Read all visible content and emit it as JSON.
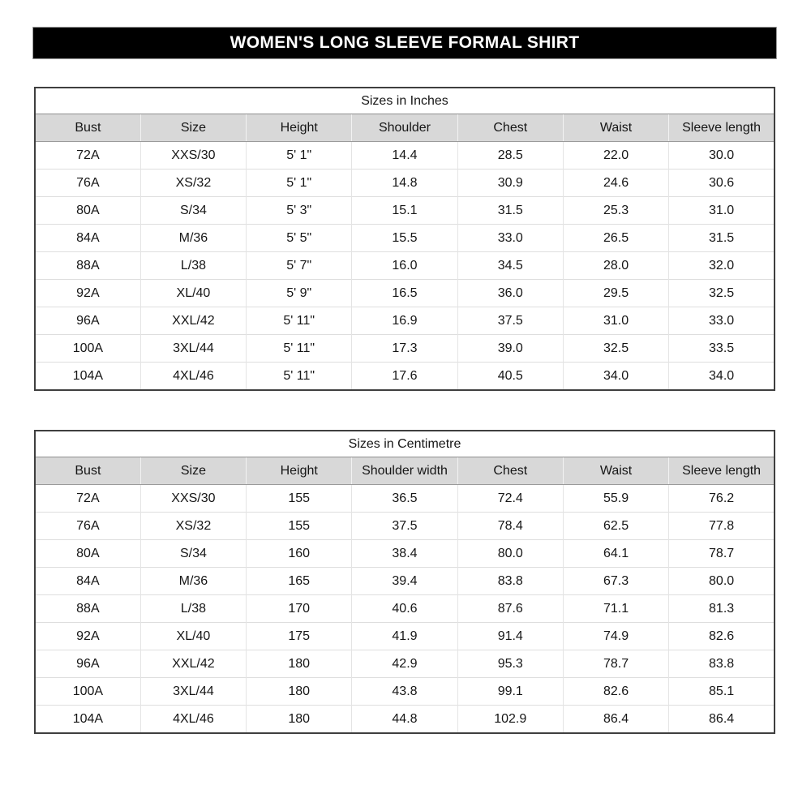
{
  "title": "WOMEN'S LONG SLEEVE FORMAL SHIRT",
  "colors": {
    "title_bar_bg": "#000000",
    "title_bar_text": "#ffffff",
    "header_row_bg": "#d8d8d8",
    "table_outer_border": "#3f3f3f",
    "grid_line": "#dedede",
    "text": "#161616"
  },
  "tables": [
    {
      "caption": "Sizes in Inches",
      "columns": [
        "Bust",
        "Size",
        "Height",
        "Shoulder",
        "Chest",
        "Waist",
        "Sleeve length"
      ],
      "rows": [
        [
          "72A",
          "XXS/30",
          "5' 1\"",
          "14.4",
          "28.5",
          "22.0",
          "30.0"
        ],
        [
          "76A",
          "XS/32",
          "5' 1\"",
          "14.8",
          "30.9",
          "24.6",
          "30.6"
        ],
        [
          "80A",
          "S/34",
          "5' 3\"",
          "15.1",
          "31.5",
          "25.3",
          "31.0"
        ],
        [
          "84A",
          "M/36",
          "5' 5\"",
          "15.5",
          "33.0",
          "26.5",
          "31.5"
        ],
        [
          "88A",
          "L/38",
          "5' 7\"",
          "16.0",
          "34.5",
          "28.0",
          "32.0"
        ],
        [
          "92A",
          "XL/40",
          "5' 9\"",
          "16.5",
          "36.0",
          "29.5",
          "32.5"
        ],
        [
          "96A",
          "XXL/42",
          "5' 11\"",
          "16.9",
          "37.5",
          "31.0",
          "33.0"
        ],
        [
          "100A",
          "3XL/44",
          "5' 11\"",
          "17.3",
          "39.0",
          "32.5",
          "33.5"
        ],
        [
          "104A",
          "4XL/46",
          "5' 11\"",
          "17.6",
          "40.5",
          "34.0",
          "34.0"
        ]
      ]
    },
    {
      "caption": "Sizes in Centimetre",
      "columns": [
        "Bust",
        "Size",
        "Height",
        "Shoulder width",
        "Chest",
        "Waist",
        "Sleeve length"
      ],
      "rows": [
        [
          "72A",
          "XXS/30",
          "155",
          "36.5",
          "72.4",
          "55.9",
          "76.2"
        ],
        [
          "76A",
          "XS/32",
          "155",
          "37.5",
          "78.4",
          "62.5",
          "77.8"
        ],
        [
          "80A",
          "S/34",
          "160",
          "38.4",
          "80.0",
          "64.1",
          "78.7"
        ],
        [
          "84A",
          "M/36",
          "165",
          "39.4",
          "83.8",
          "67.3",
          "80.0"
        ],
        [
          "88A",
          "L/38",
          "170",
          "40.6",
          "87.6",
          "71.1",
          "81.3"
        ],
        [
          "92A",
          "XL/40",
          "175",
          "41.9",
          "91.4",
          "74.9",
          "82.6"
        ],
        [
          "96A",
          "XXL/42",
          "180",
          "42.9",
          "95.3",
          "78.7",
          "83.8"
        ],
        [
          "100A",
          "3XL/44",
          "180",
          "43.8",
          "99.1",
          "82.6",
          "85.1"
        ],
        [
          "104A",
          "4XL/46",
          "180",
          "44.8",
          "102.9",
          "86.4",
          "86.4"
        ]
      ]
    }
  ]
}
